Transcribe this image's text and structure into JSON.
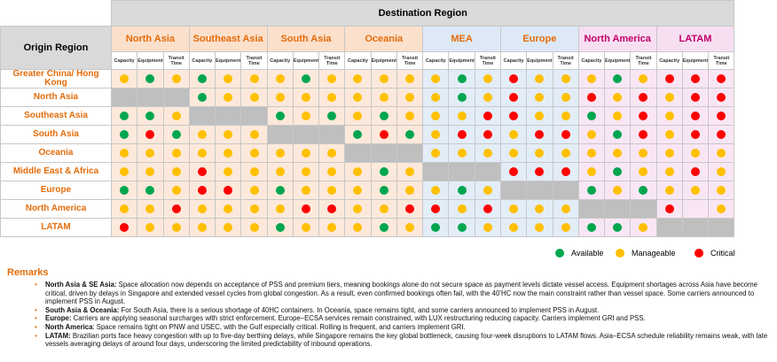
{
  "header": {
    "destination_title": "Destination Region",
    "origin_title": "Origin Region",
    "subcolumns": [
      "Capacity",
      "Equipment",
      "Transit Time"
    ]
  },
  "colors": {
    "available": "#00a64f",
    "manageable": "#ffc000",
    "critical": "#ff0000",
    "accent_orange": "#e46c0a",
    "header_peach": "#fbe0cc",
    "header_blue": "#dde9f6",
    "header_pink": "#f7dff2",
    "cell_peach": "#fce9db",
    "cell_blue": "#e3edf8",
    "cell_pink": "#f9e6f5",
    "unavailable_grey": "#bfbfbf"
  },
  "destinations": [
    {
      "label": "North Asia",
      "theme": "peach"
    },
    {
      "label": "Southeast Asia",
      "theme": "peach"
    },
    {
      "label": "South Asia",
      "theme": "peach"
    },
    {
      "label": "Oceania",
      "theme": "peach"
    },
    {
      "label": "MEA",
      "theme": "blue"
    },
    {
      "label": "Europe",
      "theme": "blue"
    },
    {
      "label": "North America",
      "theme": "pink"
    },
    {
      "label": "LATAM",
      "theme": "pink"
    }
  ],
  "origins": [
    {
      "label": "Greater China/ Hong Kong",
      "cells": [
        "Y",
        "G",
        "Y",
        "G",
        "Y",
        "Y",
        "Y",
        "G",
        "Y",
        "Y",
        "Y",
        "Y",
        "Y",
        "G",
        "Y",
        "R",
        "Y",
        "Y",
        "Y",
        "G",
        "Y",
        "R",
        "R",
        "R"
      ]
    },
    {
      "label": "North Asia",
      "cells": [
        "-",
        "-",
        "-",
        "G",
        "Y",
        "Y",
        "Y",
        "Y",
        "Y",
        "Y",
        "Y",
        "Y",
        "Y",
        "G",
        "Y",
        "R",
        "Y",
        "Y",
        "R",
        "Y",
        "R",
        "Y",
        "R",
        "R"
      ]
    },
    {
      "label": "Southeast Asia",
      "cells": [
        "G",
        "G",
        "Y",
        "-",
        "-",
        "-",
        "G",
        "Y",
        "G",
        "Y",
        "G",
        "Y",
        "Y",
        "Y",
        "R",
        "R",
        "Y",
        "Y",
        "G",
        "Y",
        "R",
        "Y",
        "R",
        "R"
      ]
    },
    {
      "label": "South Asia",
      "cells": [
        "G",
        "R",
        "G",
        "Y",
        "Y",
        "Y",
        "-",
        "-",
        "-",
        "G",
        "R",
        "G",
        "Y",
        "R",
        "R",
        "Y",
        "R",
        "R",
        "Y",
        "G",
        "R",
        "Y",
        "R",
        "R"
      ]
    },
    {
      "label": "Oceania",
      "cells": [
        "Y",
        "Y",
        "Y",
        "Y",
        "Y",
        "Y",
        "Y",
        "Y",
        "Y",
        "-",
        "-",
        "-",
        "Y",
        "Y",
        "Y",
        "Y",
        "Y",
        "Y",
        "Y",
        "Y",
        "Y",
        "Y",
        "Y",
        "Y"
      ]
    },
    {
      "label": "Middle East & Africa",
      "cells": [
        "Y",
        "Y",
        "Y",
        "R",
        "Y",
        "Y",
        "Y",
        "Y",
        "Y",
        "Y",
        "G",
        "Y",
        "-",
        "-",
        "-",
        "R",
        "R",
        "R",
        "Y",
        "G",
        "Y",
        "Y",
        "R",
        "Y"
      ]
    },
    {
      "label": "Europe",
      "cells": [
        "G",
        "G",
        "Y",
        "R",
        "R",
        "Y",
        "G",
        "Y",
        "Y",
        "Y",
        "G",
        "Y",
        "Y",
        "G",
        "Y",
        "-",
        "-",
        "-",
        "G",
        "Y",
        "G",
        "Y",
        "Y",
        "Y"
      ]
    },
    {
      "label": "North America",
      "cells": [
        "Y",
        "Y",
        "R",
        "Y",
        "Y",
        "Y",
        "Y",
        "R",
        "R",
        "Y",
        "Y",
        "R",
        "R",
        "Y",
        "R",
        "Y",
        "Y",
        "Y",
        "-",
        "-",
        "-",
        "R",
        "",
        "Y"
      ]
    },
    {
      "label": "LATAM",
      "cells": [
        "R",
        "Y",
        "Y",
        "Y",
        "Y",
        "Y",
        "G",
        "Y",
        "Y",
        "Y",
        "G",
        "Y",
        "G",
        "G",
        "Y",
        "Y",
        "Y",
        "Y",
        "G",
        "G",
        "Y",
        "-",
        "-",
        "-"
      ]
    }
  ],
  "legend": {
    "available": "Available",
    "manageable": "Manageable",
    "critical": "Critical"
  },
  "remarks": {
    "title": "Remarks",
    "items": [
      {
        "label": "North Asia & SE Asia:",
        "text": " Space allocation now depends on acceptance of PSS and premium tiers, meaning bookings alone do not secure space as payment levels dictate vessel access. Equipment shortages across Asia have become critical, driven by delays in Singapore and extended vessel cycles from global congestion. As a result, even confirmed bookings often fail, with the 40’HC now the main constraint rather than vessel space. Some carriers announced to implement PSS in August."
      },
      {
        "label": "South Asia & Oceania:",
        "text": " For South Asia, there is a serious shortage of 40HC containers. In Oceania, space remains tight, and some carriers announced to implement PSS in August."
      },
      {
        "label": "Europe:",
        "text": " Carriers are applying seasonal surcharges with strict enforcement. Europe–ECSA services remain constrained, with LUX restructuring reducing capacity. Carriers implement GRI and PSS."
      },
      {
        "label": "North America",
        "text": ": Space remains tight on PNW and USEC, with the Gulf especially critical. Rolling is frequent, and carriers implement GRI."
      },
      {
        "label": "LATAM:",
        "text": " Brazilian ports face heavy congestion with up to five-day berthing delays, while Singapore remains the key global bottleneck, causing four-week disruptions to LATAM flows. Asia–ECSA schedule reliability remains weak, with late vessels averaging delays of around four days, underscoring the limited predictability of inbound operations."
      }
    ]
  }
}
